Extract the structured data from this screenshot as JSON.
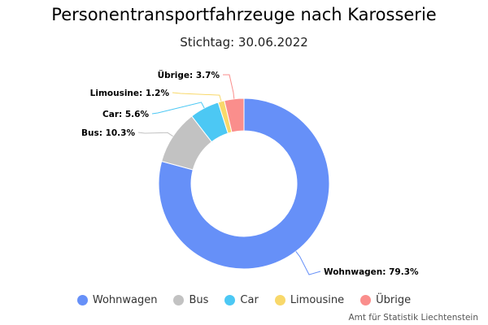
{
  "chart_data": {
    "type": "pie",
    "variant": "donut",
    "title": "Personentransportfahrzeuge nach Karosserie",
    "subtitle": "Stichtag: 30.06.2022",
    "unit": "%",
    "categories": [
      "Wohnwagen",
      "Bus",
      "Car",
      "Limousine",
      "Übrige"
    ],
    "values": [
      79.3,
      10.3,
      5.6,
      1.2,
      3.7
    ],
    "labels": [
      "Wohnwagen: 79.3%",
      "Bus: 10.3%",
      "Car: 5.6%",
      "Limousine: 1.2%",
      "Übrige: 3.7%"
    ],
    "colors": [
      "#6690f8",
      "#c2c2c2",
      "#4cc8f4",
      "#f8d86a",
      "#fa8e8c"
    ],
    "legend_position": "bottom",
    "credit": "Amt für Statistik Liechtenstein"
  }
}
